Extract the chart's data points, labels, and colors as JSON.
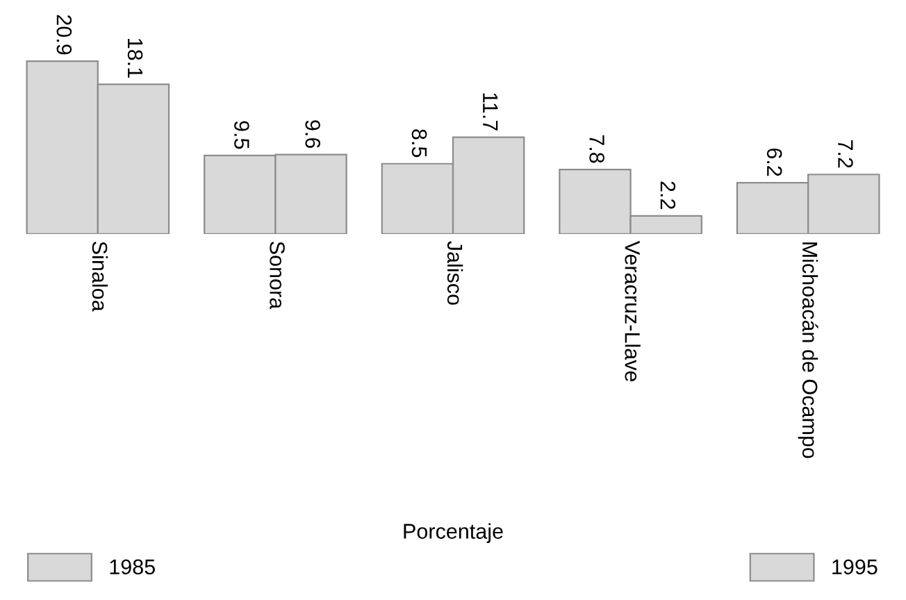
{
  "chart_data": {
    "type": "bar",
    "categories": [
      "Sinaloa",
      "Sonora",
      "Jalisco",
      "Veracruz-Llave",
      "Michoacán de Ocampo"
    ],
    "series": [
      {
        "name": "1985",
        "color": "#d9d9d9",
        "values": [
          20.9,
          9.5,
          8.5,
          7.8,
          6.2
        ]
      },
      {
        "name": "1995",
        "color": "#d9d9d9",
        "values": [
          18.1,
          9.6,
          11.7,
          2.2,
          7.2
        ]
      }
    ],
    "legend_title": "Porcentaje",
    "legend": "bottom",
    "data_labels": true,
    "tick_labels": "x",
    "grid": false
  }
}
